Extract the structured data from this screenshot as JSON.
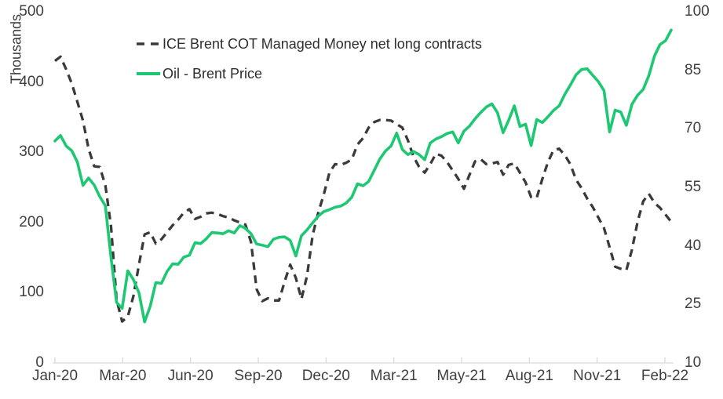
{
  "figure": {
    "background": "#ffffff",
    "axis_line_color": "#d9d9d9",
    "text_color": "#3f3f3f"
  },
  "legend": {
    "items": [
      {
        "label": "ICE Brent COT Managed Money net long contracts",
        "style": "dashed",
        "color": "#3a3a3a"
      },
      {
        "label": "Oil - Brent Price",
        "style": "solid",
        "color": "#1ec873"
      }
    ]
  },
  "chart_data": {
    "type": "line",
    "title": "",
    "xlabel": "",
    "ylabel_left": "Thousands",
    "ylabel_right": "",
    "grid": false,
    "legend_position": "top-left-inside",
    "x_frequency": "weekly",
    "x_tick_labels": [
      "Jan-20",
      "Mar-20",
      "Jun-20",
      "Sep-20",
      "Dec-20",
      "Mar-21",
      "May-21",
      "Aug-21",
      "Nov-21",
      "Feb-22"
    ],
    "left_axis": {
      "title": "Thousands",
      "ticks": [
        0,
        100,
        200,
        300,
        400,
        500
      ],
      "range": [
        0,
        500
      ]
    },
    "right_axis": {
      "ticks": [
        10,
        25,
        40,
        55,
        70,
        85,
        100
      ],
      "range": [
        10,
        100
      ]
    },
    "series": [
      {
        "name": "ICE Brent COT Managed Money net long contracts",
        "axis": "left",
        "unit": "thousand contracts",
        "color": "#3a3a3a",
        "style": "dashed",
        "values": [
          430,
          436,
          418,
          398,
          372,
          345,
          305,
          280,
          279,
          253,
          195,
          90,
          59,
          66,
          95,
          140,
          183,
          186,
          170,
          176,
          186,
          196,
          204,
          214,
          219,
          205,
          208,
          213,
          214,
          212,
          209,
          207,
          203,
          200,
          197,
          172,
          105,
          88,
          92,
          89,
          89,
          116,
          140,
          121,
          91,
          124,
          182,
          214,
          240,
          271,
          283,
          282,
          285,
          290,
          311,
          320,
          335,
          343,
          346,
          346,
          345,
          340,
          335,
          317,
          294,
          279,
          271,
          283,
          298,
          295,
          286,
          274,
          262,
          248,
          268,
          287,
          290,
          283,
          284,
          286,
          268,
          282,
          284,
          271,
          257,
          236,
          235,
          262,
          286,
          303,
          305,
          296,
          283,
          261,
          249,
          234,
          222,
          207,
          192,
          165,
          137,
          134,
          132,
          161,
          201,
          230,
          241,
          228,
          221,
          211,
          201
        ]
      },
      {
        "name": "Oil - Brent Price",
        "axis": "right",
        "unit": "USD/bbl",
        "color": "#1ec873",
        "style": "solid",
        "values": [
          66.9,
          68.3,
          65.6,
          64.4,
          61.5,
          55.5,
          57.4,
          55.6,
          52.6,
          50.3,
          37.0,
          25.5,
          24.0,
          33.6,
          31.4,
          28.0,
          20.5,
          24.5,
          30.6,
          30.4,
          33.4,
          35.4,
          35.3,
          37.1,
          37.6,
          40.8,
          40.6,
          41.8,
          43.4,
          43.3,
          43.1,
          43.9,
          43.3,
          45.2,
          44.5,
          43.1,
          40.5,
          40.2,
          39.8,
          41.7,
          42.2,
          42.3,
          41.4,
          37.4,
          42.6,
          44.1,
          45.9,
          47.6,
          48.8,
          49.3,
          49.9,
          50.2,
          51.0,
          52.5,
          55.9,
          55.4,
          56.5,
          59.4,
          62.3,
          64.3,
          65.6,
          68.9,
          64.7,
          63.4,
          64.2,
          63.4,
          62.1,
          66.4,
          67.4,
          68.0,
          68.8,
          69.2,
          66.4,
          69.4,
          70.7,
          72.6,
          74.2,
          75.6,
          76.4,
          74.1,
          69.0,
          72.2,
          75.9,
          70.6,
          71.2,
          65.7,
          72.4,
          71.6,
          73.1,
          74.7,
          75.9,
          78.8,
          81.2,
          83.8,
          85.2,
          85.4,
          83.7,
          82.1,
          79.8,
          69.2,
          74.8,
          74.3,
          70.9,
          76.3,
          78.6,
          80.1,
          83.6,
          88.6,
          91.6,
          92.6,
          95.3
        ]
      }
    ]
  }
}
